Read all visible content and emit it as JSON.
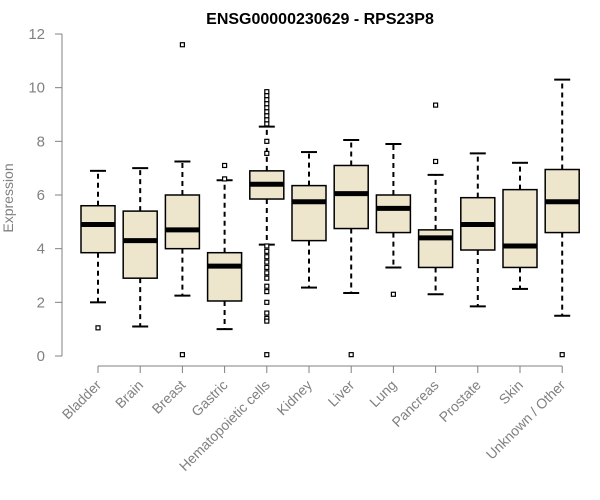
{
  "chart_data": {
    "type": "boxplot",
    "title": "ENSG00000230629 - RPS23P8",
    "xlabel": "",
    "ylabel": "Expression",
    "ylim": [
      0,
      12
    ],
    "yticks": [
      0,
      2,
      4,
      6,
      8,
      10,
      12
    ],
    "categories": [
      "Bladder",
      "Brain",
      "Breast",
      "Gastric",
      "Hematopoietic cells",
      "Kidney",
      "Liver",
      "Lung",
      "Pancreas",
      "Prostate",
      "Skin",
      "Unknown / Other"
    ],
    "box_fill": "#ede6cc",
    "series": [
      {
        "name": "Bladder",
        "min": 2.0,
        "q1": 3.85,
        "median": 4.9,
        "q3": 5.6,
        "max": 6.9,
        "outliers": [
          1.05
        ]
      },
      {
        "name": "Brain",
        "min": 1.1,
        "q1": 2.9,
        "median": 4.3,
        "q3": 5.4,
        "max": 7.0,
        "outliers": []
      },
      {
        "name": "Breast",
        "min": 2.25,
        "q1": 4.0,
        "median": 4.7,
        "q3": 6.0,
        "max": 7.25,
        "outliers": [
          11.6,
          0.05
        ]
      },
      {
        "name": "Gastric",
        "min": 1.0,
        "q1": 2.05,
        "median": 3.35,
        "q3": 3.85,
        "max": 6.55,
        "outliers": [
          7.1,
          6.6
        ]
      },
      {
        "name": "Hematopoietic cells",
        "min": 4.15,
        "q1": 5.85,
        "median": 6.4,
        "q3": 6.9,
        "max": 8.55,
        "outliers": [
          9.85,
          9.7,
          9.55,
          9.4,
          9.25,
          9.1,
          8.95,
          8.8,
          8.65,
          8.0,
          7.55,
          4.1,
          3.9,
          3.7,
          3.5,
          3.3,
          3.1,
          2.9,
          2.6,
          2.4,
          2.0,
          1.6,
          1.4,
          1.3,
          0.05
        ]
      },
      {
        "name": "Kidney",
        "min": 2.55,
        "q1": 4.3,
        "median": 5.75,
        "q3": 6.35,
        "max": 7.6,
        "outliers": []
      },
      {
        "name": "Liver",
        "min": 2.35,
        "q1": 4.75,
        "median": 6.05,
        "q3": 7.1,
        "max": 8.05,
        "outliers": [
          0.05
        ]
      },
      {
        "name": "Lung",
        "min": 3.3,
        "q1": 4.6,
        "median": 5.5,
        "q3": 6.0,
        "max": 7.9,
        "outliers": [
          2.3
        ]
      },
      {
        "name": "Pancreas",
        "min": 2.3,
        "q1": 3.3,
        "median": 4.4,
        "q3": 4.7,
        "max": 6.75,
        "outliers": [
          9.35,
          7.25
        ]
      },
      {
        "name": "Prostate",
        "min": 1.85,
        "q1": 3.95,
        "median": 4.9,
        "q3": 5.9,
        "max": 7.55,
        "outliers": []
      },
      {
        "name": "Skin",
        "min": 2.5,
        "q1": 3.3,
        "median": 4.1,
        "q3": 6.2,
        "max": 7.2,
        "outliers": []
      },
      {
        "name": "Unknown / Other",
        "min": 1.5,
        "q1": 4.6,
        "median": 5.75,
        "q3": 6.95,
        "max": 10.3,
        "outliers": [
          0.05
        ]
      }
    ]
  }
}
